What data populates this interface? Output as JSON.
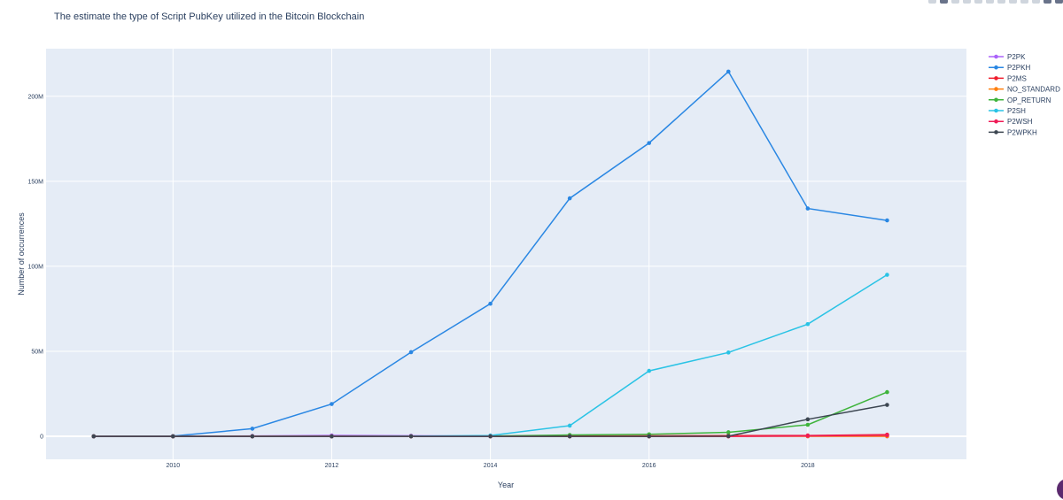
{
  "chart_data": {
    "type": "line",
    "title": "The estimate the type of Script PubKey utilized in the Bitcoin Blockchain",
    "xlabel": "Year",
    "ylabel": "Number of occurrences",
    "xlim": [
      2008.4,
      2020.0
    ],
    "ylim": [
      -13500000,
      228000000
    ],
    "x_ticks": [
      2010,
      2012,
      2014,
      2016,
      2018
    ],
    "y_ticks": [
      0,
      50000000,
      100000000,
      150000000,
      200000000
    ],
    "y_tick_labels": [
      "0",
      "50M",
      "100M",
      "150M",
      "200M"
    ],
    "grid": true,
    "legend_position": "top-right",
    "x": [
      2009,
      2010,
      2011,
      2012,
      2013,
      2014,
      2015,
      2016,
      2017,
      2018,
      2019
    ],
    "series": [
      {
        "name": "P2PK",
        "color": "#ab63fa",
        "values": [
          30000,
          100000,
          250000,
          550000,
          350000,
          150000,
          80000,
          60000,
          40000,
          30000,
          20000
        ]
      },
      {
        "name": "P2PKH",
        "color": "#2a87e3",
        "values": [
          0,
          150000,
          4500000,
          19000000,
          49500000,
          78000000,
          140000000,
          172500000,
          214500000,
          134000000,
          127000000
        ]
      },
      {
        "name": "P2MS",
        "color": "#ef1c2c",
        "values": [
          0,
          0,
          10000,
          30000,
          100000,
          200000,
          250000,
          300000,
          400000,
          500000,
          1000000
        ]
      },
      {
        "name": "NO_STANDARD",
        "color": "#ff7f0e",
        "values": [
          0,
          0,
          10000,
          30000,
          20000,
          10000,
          10000,
          10000,
          10000,
          10000,
          10000
        ]
      },
      {
        "name": "OP_RETURN",
        "color": "#3fb43c",
        "values": [
          0,
          0,
          0,
          0,
          0,
          200000,
          800000,
          1200000,
          2400000,
          6800000,
          26000000
        ]
      },
      {
        "name": "P2SH",
        "color": "#2ac3e5",
        "values": [
          0,
          0,
          0,
          0,
          100000,
          500000,
          6300000,
          38500000,
          49300000,
          66000000,
          95000000
        ]
      },
      {
        "name": "P2WSH",
        "color": "#ef1c57",
        "values": [
          0,
          0,
          0,
          0,
          0,
          0,
          0,
          0,
          0,
          300000,
          700000
        ]
      },
      {
        "name": "P2WPKH",
        "color": "#3c4651",
        "values": [
          0,
          0,
          0,
          0,
          0,
          0,
          0,
          0,
          100000,
          10000000,
          18500000
        ]
      }
    ]
  }
}
